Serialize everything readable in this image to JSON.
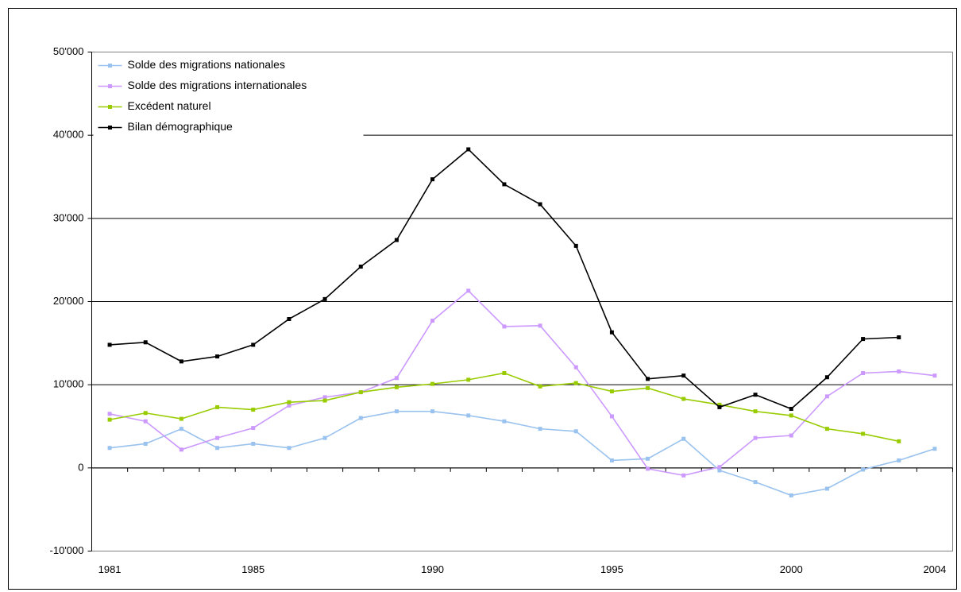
{
  "chart_data": {
    "type": "line",
    "x": [
      1981,
      1982,
      1983,
      1984,
      1985,
      1986,
      1987,
      1988,
      1989,
      1990,
      1991,
      1992,
      1993,
      1994,
      1995,
      1996,
      1997,
      1998,
      1999,
      2000,
      2001,
      2002,
      2003,
      2004
    ],
    "xlim": [
      1980.5,
      2004.5
    ],
    "xticks": [
      1981,
      1985,
      1990,
      1995,
      2000,
      2004
    ],
    "ylim": [
      -10000,
      50000
    ],
    "yticks": [
      {
        "value": -10000,
        "label": "-10'000"
      },
      0,
      {
        "value": 10000,
        "label": "10'000"
      },
      {
        "value": 20000,
        "label": "20'000"
      },
      {
        "value": 30000,
        "label": "30'000"
      },
      {
        "value": 40000,
        "label": "40'000"
      },
      {
        "value": 50000,
        "label": "50'000"
      }
    ],
    "negative_tick_color": "#ff0000",
    "grid": true,
    "legend": "top-left",
    "series": [
      {
        "name": "Solde des migrations nationales",
        "color": "#99c2ee",
        "values": [
          2400,
          2900,
          4700,
          2400,
          2900,
          2400,
          3600,
          6000,
          6800,
          6800,
          6300,
          5600,
          4700,
          4400,
          900,
          1100,
          3500,
          -300,
          -1700,
          -3300,
          -2500,
          -200,
          900,
          2300
        ]
      },
      {
        "name": "Solde des migrations internationales",
        "color": "#cc99ff",
        "values": [
          6500,
          5600,
          2200,
          3600,
          4800,
          7500,
          8500,
          9100,
          10800,
          17700,
          21300,
          17000,
          17100,
          12100,
          6200,
          -100,
          -900,
          100,
          3600,
          3900,
          8600,
          11400,
          11600,
          11100
        ]
      },
      {
        "name": "Excédent naturel",
        "color": "#99cc00",
        "values": [
          5800,
          6600,
          5900,
          7300,
          7000,
          7900,
          8100,
          9100,
          9700,
          10100,
          10600,
          11400,
          9800,
          10200,
          9200,
          9600,
          8300,
          7600,
          6800,
          6300,
          4700,
          4100,
          3200,
          null
        ]
      },
      {
        "name": "Bilan démographique",
        "color": "#000000",
        "values": [
          14800,
          15100,
          12800,
          13400,
          14800,
          17900,
          20300,
          24200,
          27400,
          34700,
          38300,
          34100,
          31700,
          26700,
          16300,
          10700,
          11100,
          7300,
          8800,
          7100,
          10900,
          15500,
          15700,
          null
        ]
      }
    ]
  }
}
